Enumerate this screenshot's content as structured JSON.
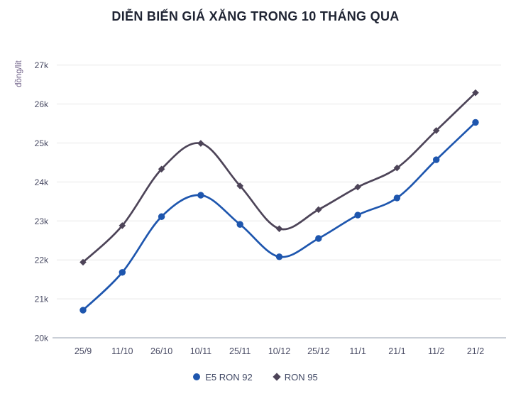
{
  "title": "DIỄN BIẾN GIÁ XĂNG TRONG 10 THÁNG QUA",
  "y_unit_label": "đồng/lít",
  "colors": {
    "e5_ron_92": "#1e56ae",
    "ron_95": "#4d4458",
    "gridline": "#e7e7e7",
    "axis_line": "#b8bfca",
    "tick_text": "#474962",
    "title_text": "#1f2433",
    "unit_text": "#6e5f87"
  },
  "legend": {
    "items": [
      {
        "label": "E5 RON 92",
        "marker": "circle",
        "color": "#1e56ae"
      },
      {
        "label": "RON 95",
        "marker": "diamond",
        "color": "#4d4458"
      }
    ]
  },
  "chart_data": {
    "type": "line",
    "title": "DIỄN BIẾN GIÁ XĂNG TRONG 10 THÁNG QUA",
    "xlabel": "",
    "ylabel": "đồng/lít",
    "categories": [
      "25/9",
      "11/10",
      "26/10",
      "10/11",
      "25/11",
      "10/12",
      "25/12",
      "11/1",
      "21/1",
      "11/2",
      "21/2"
    ],
    "y_ticks": [
      "20k",
      "21k",
      "22k",
      "23k",
      "24k",
      "25k",
      "26k",
      "27k"
    ],
    "ylim": [
      20000,
      27000
    ],
    "grid": "horizontal",
    "legend_position": "bottom",
    "smooth": true,
    "series": [
      {
        "name": "E5 RON 92",
        "color": "#1e56ae",
        "marker": "circle",
        "values": [
          20710,
          21680,
          23110,
          23660,
          22910,
          22080,
          22550,
          23150,
          23590,
          24570,
          25530
        ]
      },
      {
        "name": "RON 95",
        "color": "#4d4458",
        "marker": "diamond",
        "values": [
          21940,
          22880,
          24330,
          24990,
          23900,
          22800,
          23290,
          23870,
          24360,
          25320,
          26290
        ]
      }
    ]
  }
}
